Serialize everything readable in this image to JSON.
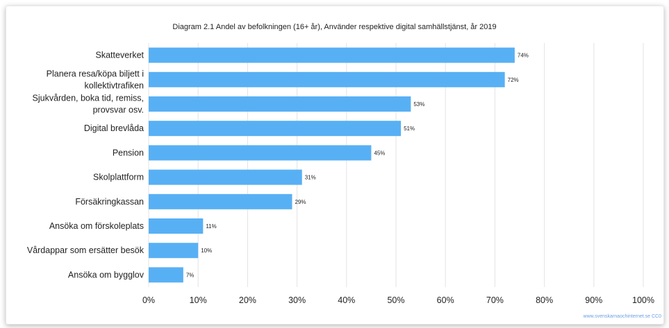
{
  "chart_data": {
    "type": "bar",
    "orientation": "horizontal",
    "title": "Diagram 2.1 Andel av befolkningen (16+ år), Använder respektive digital samhällstjänst, år 2019",
    "categories": [
      [
        "Skatteverket"
      ],
      [
        "Planera resa/köpa biljett i",
        "kollektivtrafiken"
      ],
      [
        "Sjukvården, boka tid, remiss,",
        "provsvar osv."
      ],
      [
        "Digital brevlåda"
      ],
      [
        "Pension"
      ],
      [
        "Skolplattform"
      ],
      [
        "Försäkringkassan"
      ],
      [
        "Ansöka om förskoleplats"
      ],
      [
        "Vårdappar som ersätter besök"
      ],
      [
        "Ansöka om bygglov"
      ]
    ],
    "values": [
      74,
      72,
      53,
      51,
      45,
      31,
      29,
      11,
      10,
      7
    ],
    "data_labels": [
      "74%",
      "72%",
      "53%",
      "51%",
      "45%",
      "31%",
      "29%",
      "11%",
      "10%",
      "7%"
    ],
    "xlim": [
      0,
      100
    ],
    "x_ticks": [
      "0%",
      "10%",
      "20%",
      "30%",
      "40%",
      "50%",
      "60%",
      "70%",
      "80%",
      "90%",
      "100%"
    ],
    "grid": true,
    "bar_color": "#58b0f4",
    "grid_color": "#e3e3e3"
  },
  "source": "www.svenskarnaochinternet.se CC0"
}
